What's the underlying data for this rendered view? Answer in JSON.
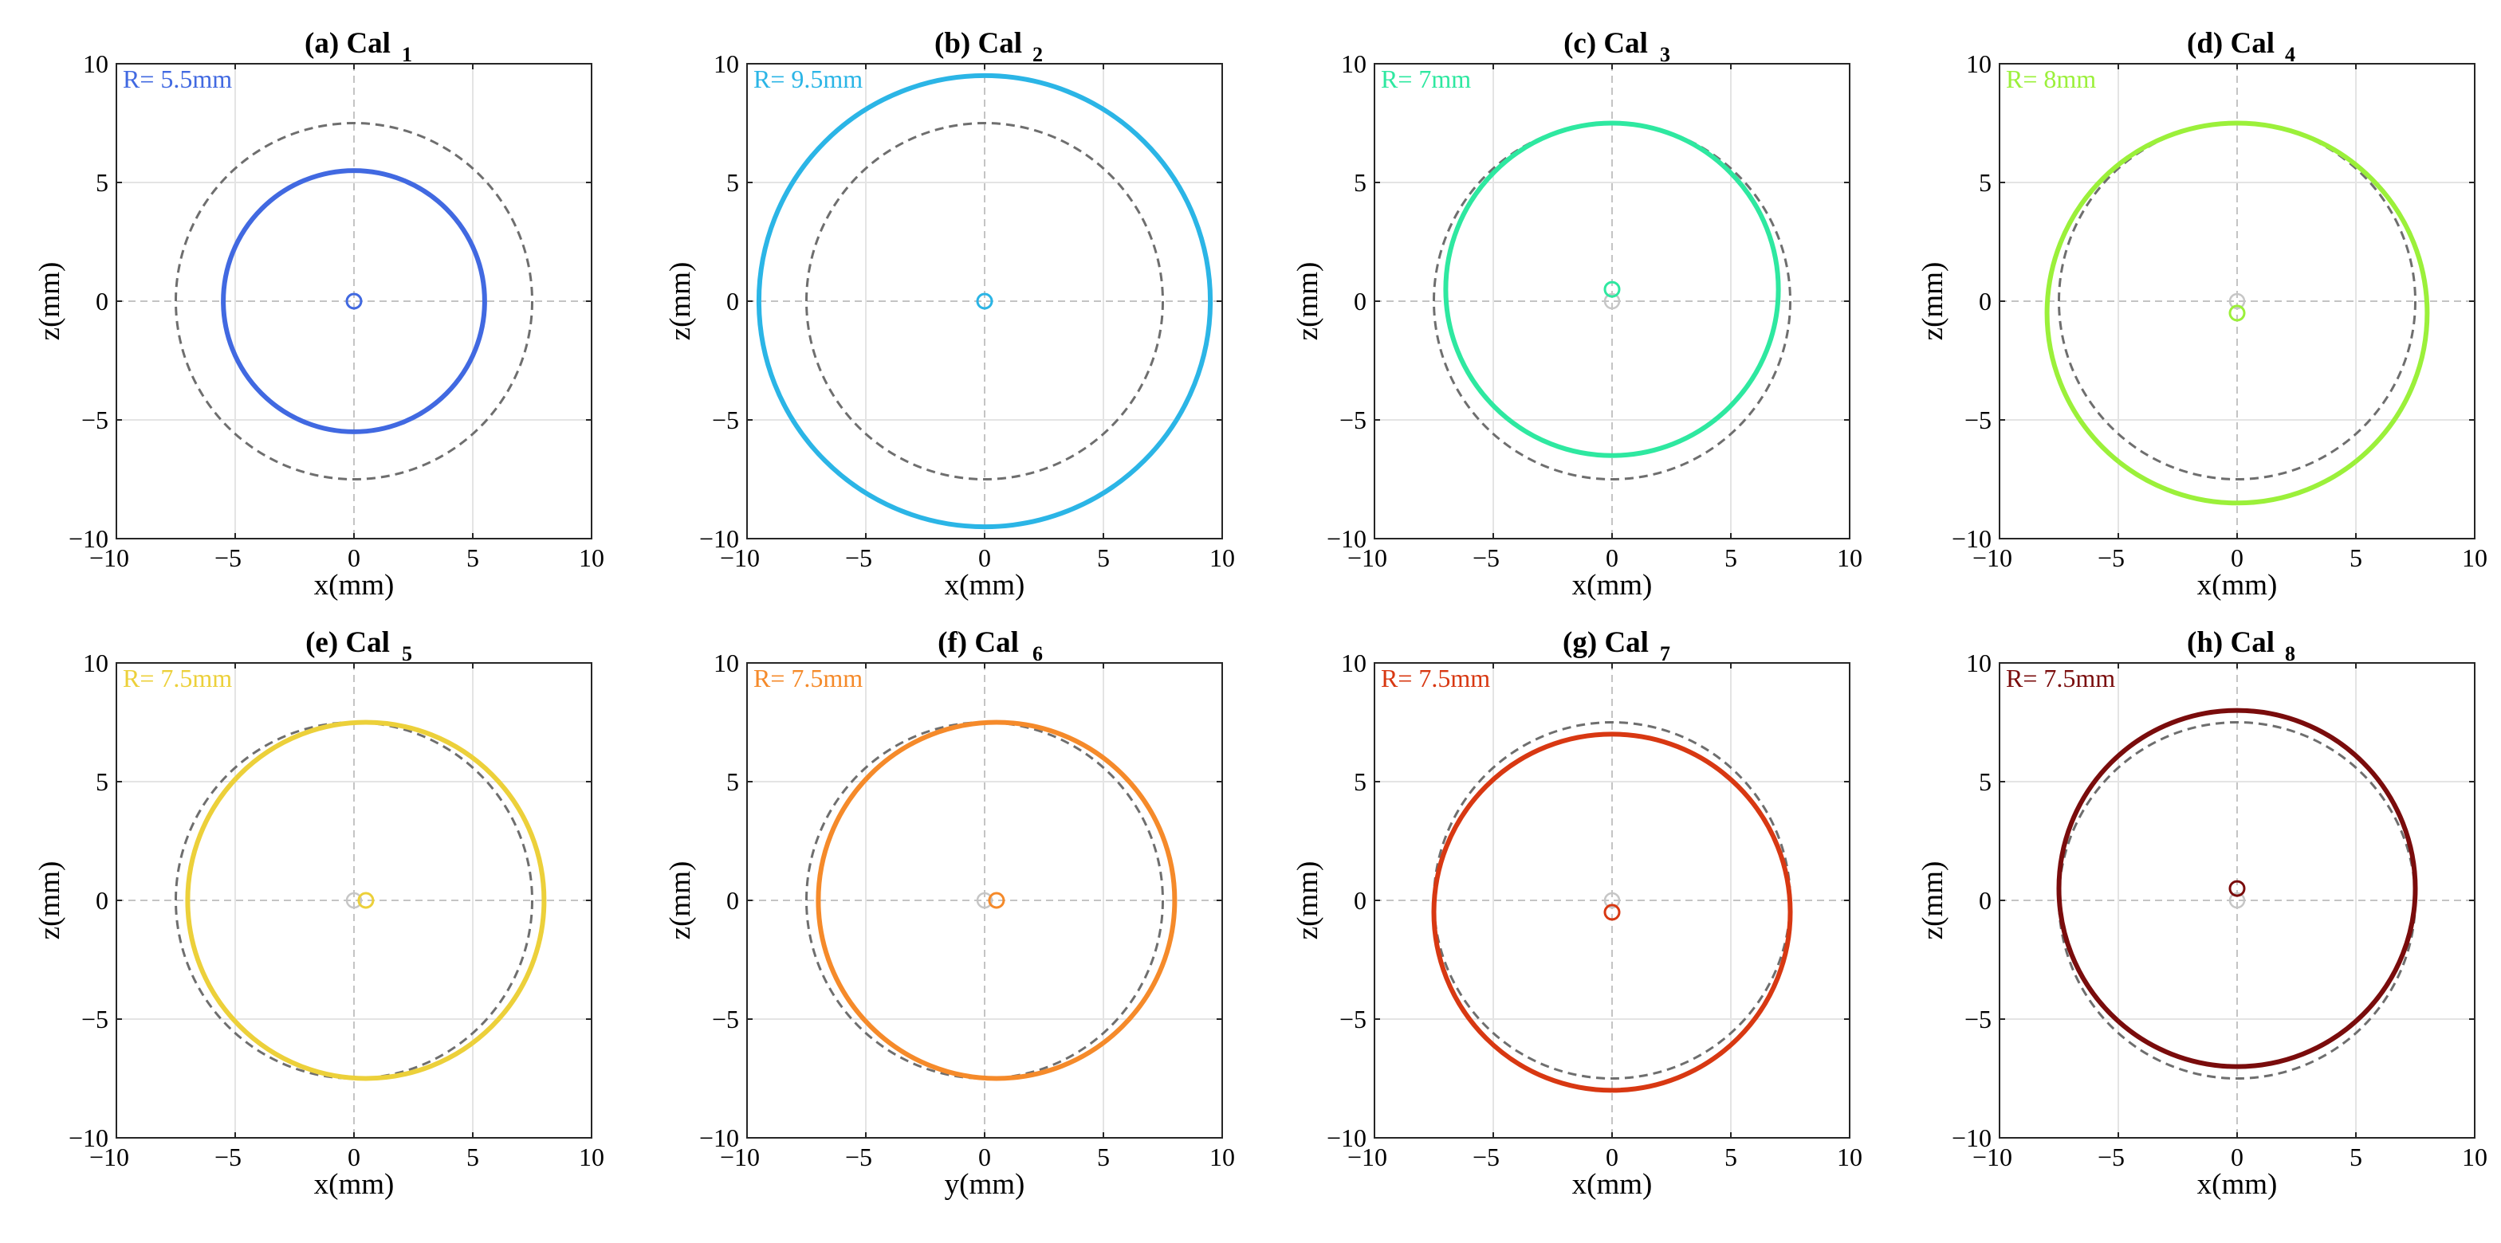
{
  "chart_data": [
    {
      "type": "scatter",
      "label": "(a) Cal",
      "subscript": "1",
      "radius_text": "R= 5.5mm",
      "xlabel": "x(mm)",
      "ylabel": "z(mm)",
      "xlim": [
        -10,
        10
      ],
      "ylim": [
        -10,
        10
      ],
      "xticks": [
        "−10",
        "−5",
        "0",
        "5",
        "10"
      ],
      "yticks": [
        "10",
        "5",
        "0",
        "−5",
        "−10"
      ],
      "color": "#4169e1",
      "circle": {
        "cx": 0,
        "cz": 0,
        "r": 5.5
      },
      "reference_circle": {
        "cx": 0,
        "cz": 0,
        "r": 7.5
      },
      "center_marker": {
        "x": 0,
        "z": 0
      }
    },
    {
      "type": "scatter",
      "label": "(b) Cal",
      "subscript": "2",
      "radius_text": "R= 9.5mm",
      "xlabel": "x(mm)",
      "ylabel": "z(mm)",
      "xlim": [
        -10,
        10
      ],
      "ylim": [
        -10,
        10
      ],
      "xticks": [
        "−10",
        "−5",
        "0",
        "5",
        "10"
      ],
      "yticks": [
        "10",
        "5",
        "0",
        "−5",
        "−10"
      ],
      "color": "#2bb5e6",
      "circle": {
        "cx": 0,
        "cz": 0,
        "r": 9.5
      },
      "reference_circle": {
        "cx": 0,
        "cz": 0,
        "r": 7.5
      },
      "center_marker": {
        "x": 0,
        "z": 0
      }
    },
    {
      "type": "scatter",
      "label": "(c) Cal",
      "subscript": "3",
      "radius_text": "R= 7mm",
      "xlabel": "x(mm)",
      "ylabel": "z(mm)",
      "xlim": [
        -10,
        10
      ],
      "ylim": [
        -10,
        10
      ],
      "xticks": [
        "−10",
        "−5",
        "0",
        "5",
        "10"
      ],
      "yticks": [
        "10",
        "5",
        "0",
        "−5",
        "−10"
      ],
      "color": "#2ee8a0",
      "circle": {
        "cx": 0,
        "cz": 0.5,
        "r": 7
      },
      "reference_circle": {
        "cx": 0,
        "cz": 0,
        "r": 7.5
      },
      "center_marker": {
        "x": 0,
        "z": 0.5
      }
    },
    {
      "type": "scatter",
      "label": "(d) Cal",
      "subscript": "4",
      "radius_text": "R= 8mm",
      "xlabel": "x(mm)",
      "ylabel": "z(mm)",
      "xlim": [
        -10,
        10
      ],
      "ylim": [
        -10,
        10
      ],
      "xticks": [
        "−10",
        "−5",
        "0",
        "5",
        "10"
      ],
      "yticks": [
        "10",
        "5",
        "0",
        "−5",
        "−10"
      ],
      "color": "#9bf03a",
      "circle": {
        "cx": 0,
        "cz": -0.5,
        "r": 8
      },
      "reference_circle": {
        "cx": 0,
        "cz": 0,
        "r": 7.5
      },
      "center_marker": {
        "x": 0,
        "z": -0.5
      }
    },
    {
      "type": "scatter",
      "label": "(e) Cal",
      "subscript": "5",
      "radius_text": "R= 7.5mm",
      "xlabel": "x(mm)",
      "ylabel": "z(mm)",
      "xlim": [
        -10,
        10
      ],
      "ylim": [
        -10,
        10
      ],
      "xticks": [
        "−10",
        "−5",
        "0",
        "5",
        "10"
      ],
      "yticks": [
        "10",
        "5",
        "0",
        "−5",
        "−10"
      ],
      "color": "#ecd03a",
      "circle": {
        "cx": 0.5,
        "cz": 0,
        "r": 7.5
      },
      "reference_circle": {
        "cx": 0,
        "cz": 0,
        "r": 7.5
      },
      "center_marker": {
        "x": 0.5,
        "z": 0
      }
    },
    {
      "type": "scatter",
      "label": "(f) Cal",
      "subscript": "6",
      "radius_text": "R= 7.5mm",
      "xlabel": "y(mm)",
      "ylabel": "z(mm)",
      "xlim": [
        -10,
        10
      ],
      "ylim": [
        -10,
        10
      ],
      "xticks": [
        "−10",
        "−5",
        "0",
        "5",
        "10"
      ],
      "yticks": [
        "10",
        "5",
        "0",
        "−5",
        "−10"
      ],
      "color": "#f58a2a",
      "circle": {
        "cx": 0.5,
        "cz": 0,
        "r": 7.5
      },
      "reference_circle": {
        "cx": 0,
        "cz": 0,
        "r": 7.5
      },
      "center_marker": {
        "x": 0.5,
        "z": 0
      }
    },
    {
      "type": "scatter",
      "label": "(g) Cal",
      "subscript": "7",
      "radius_text": "R= 7.5mm",
      "xlabel": "x(mm)",
      "ylabel": "z(mm)",
      "xlim": [
        -10,
        10
      ],
      "ylim": [
        -10,
        10
      ],
      "xticks": [
        "−10",
        "−5",
        "0",
        "5",
        "10"
      ],
      "yticks": [
        "10",
        "5",
        "0",
        "−5",
        "−10"
      ],
      "color": "#d83812",
      "circle": {
        "cx": 0,
        "cz": -0.5,
        "r": 7.5
      },
      "reference_circle": {
        "cx": 0,
        "cz": 0,
        "r": 7.5
      },
      "center_marker": {
        "x": 0,
        "z": -0.5
      }
    },
    {
      "type": "scatter",
      "label": "(h) Cal",
      "subscript": "8",
      "radius_text": "R= 7.5mm",
      "xlabel": "x(mm)",
      "ylabel": "z(mm)",
      "xlim": [
        -10,
        10
      ],
      "ylim": [
        -10,
        10
      ],
      "xticks": [
        "−10",
        "−5",
        "0",
        "5",
        "10"
      ],
      "yticks": [
        "10",
        "5",
        "0",
        "−5",
        "−10"
      ],
      "color": "#7a0c0c",
      "circle": {
        "cx": 0,
        "cz": 0.5,
        "r": 7.5
      },
      "reference_circle": {
        "cx": 0,
        "cz": 0,
        "r": 7.5
      },
      "center_marker": {
        "x": 0,
        "z": 0.5
      }
    }
  ]
}
